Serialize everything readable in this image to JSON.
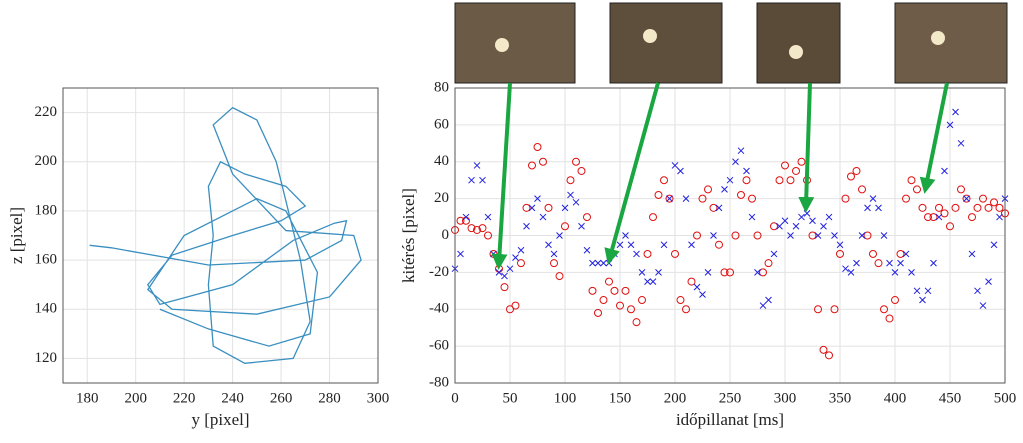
{
  "chart_data": [
    {
      "type": "line",
      "xlabel": "y [pixel]",
      "ylabel": "z [pixel]",
      "color": "#3a8fc0",
      "grid": true,
      "xlim": [
        170,
        300
      ],
      "xticks": [
        180,
        200,
        220,
        240,
        260,
        280,
        300
      ],
      "ylim": [
        110,
        230
      ],
      "yticks": [
        120,
        140,
        160,
        180,
        200,
        220
      ],
      "x": [
        181,
        190,
        230,
        270,
        285,
        287,
        282,
        265,
        240,
        210,
        205,
        215,
        240,
        260,
        270,
        262,
        245,
        235,
        230,
        232,
        230,
        232,
        245,
        265,
        272,
        268,
        258,
        250,
        240,
        232,
        240,
        262,
        290,
        293,
        280,
        250,
        215,
        205,
        220,
        250,
        262,
        275,
        272,
        255,
        230,
        210
      ],
      "values": [
        166,
        165,
        158,
        160,
        168,
        176,
        175,
        168,
        150,
        142,
        150,
        162,
        170,
        176,
        182,
        190,
        195,
        200,
        190,
        170,
        150,
        125,
        118,
        120,
        135,
        160,
        200,
        217,
        222,
        215,
        195,
        172,
        170,
        160,
        145,
        138,
        140,
        148,
        170,
        185,
        180,
        155,
        130,
        125,
        132,
        140
      ]
    },
    {
      "type": "scatter",
      "xlabel": "időpillanat [ms]",
      "ylabel": "kitérés [pixel]",
      "grid": true,
      "xlim": [
        0,
        500
      ],
      "xticks": [
        0,
        50,
        100,
        150,
        200,
        250,
        300,
        350,
        400,
        450,
        500
      ],
      "ylim": [
        -80,
        80
      ],
      "yticks": [
        -80,
        -60,
        -40,
        -20,
        0,
        20,
        40,
        60,
        80
      ],
      "x": [
        0,
        5,
        10,
        15,
        20,
        25,
        30,
        35,
        40,
        45,
        50,
        55,
        60,
        65,
        70,
        75,
        80,
        85,
        90,
        95,
        100,
        105,
        110,
        115,
        120,
        125,
        130,
        135,
        140,
        145,
        150,
        155,
        160,
        165,
        170,
        175,
        180,
        185,
        190,
        195,
        200,
        205,
        210,
        215,
        220,
        225,
        230,
        235,
        240,
        245,
        250,
        255,
        260,
        265,
        270,
        275,
        280,
        285,
        290,
        295,
        300,
        305,
        310,
        315,
        320,
        325,
        330,
        335,
        340,
        345,
        350,
        355,
        360,
        365,
        370,
        375,
        380,
        385,
        390,
        395,
        400,
        405,
        410,
        415,
        420,
        425,
        430,
        435,
        440,
        445,
        450,
        455,
        460,
        465,
        470,
        475,
        480,
        485,
        490,
        495,
        500
      ],
      "series": [
        {
          "color": "#e01010",
          "marker": "o",
          "values": [
            3,
            8,
            8,
            4,
            3,
            4,
            0,
            -10,
            -18,
            -28,
            -40,
            -38,
            -15,
            15,
            38,
            48,
            40,
            15,
            -15,
            -22,
            5,
            30,
            40,
            35,
            10,
            -30,
            -42,
            -35,
            -25,
            -30,
            -38,
            -30,
            -40,
            -47,
            -35,
            -10,
            10,
            22,
            30,
            20,
            -10,
            -35,
            -40,
            -25,
            0,
            20,
            25,
            15,
            -5,
            -20,
            -20,
            0,
            22,
            30,
            20,
            0,
            -20,
            -15,
            5,
            30,
            38,
            30,
            35,
            40,
            30,
            0,
            -40,
            -62,
            -65,
            -40,
            -10,
            20,
            32,
            35,
            25,
            0,
            -10,
            -15,
            -40,
            -45,
            -35,
            -10,
            20,
            30,
            25,
            15,
            10,
            10,
            15,
            12,
            5,
            15,
            25,
            20,
            10,
            15,
            20,
            15,
            18,
            15,
            12
          ]
        },
        {
          "color": "#2020e0",
          "marker": "x",
          "values": [
            -18,
            -10,
            10,
            30,
            38,
            30,
            10,
            -10,
            -20,
            -22,
            -18,
            -12,
            -8,
            5,
            15,
            20,
            10,
            -5,
            -10,
            0,
            15,
            22,
            18,
            5,
            -8,
            -15,
            -15,
            -15,
            -15,
            -10,
            -5,
            0,
            -5,
            -10,
            -20,
            -25,
            -25,
            -20,
            -5,
            20,
            38,
            35,
            20,
            -5,
            -28,
            -32,
            -20,
            0,
            15,
            25,
            30,
            40,
            46,
            35,
            10,
            -20,
            -38,
            -35,
            -10,
            5,
            8,
            0,
            5,
            10,
            12,
            8,
            0,
            5,
            10,
            0,
            -5,
            -18,
            -20,
            -15,
            0,
            15,
            20,
            15,
            0,
            -15,
            -20,
            -15,
            -10,
            -20,
            -30,
            -35,
            -30,
            -15,
            10,
            35,
            60,
            67,
            50,
            20,
            -10,
            -30,
            -38,
            -25,
            -5,
            10,
            20
          ]
        }
      ]
    }
  ]
}
